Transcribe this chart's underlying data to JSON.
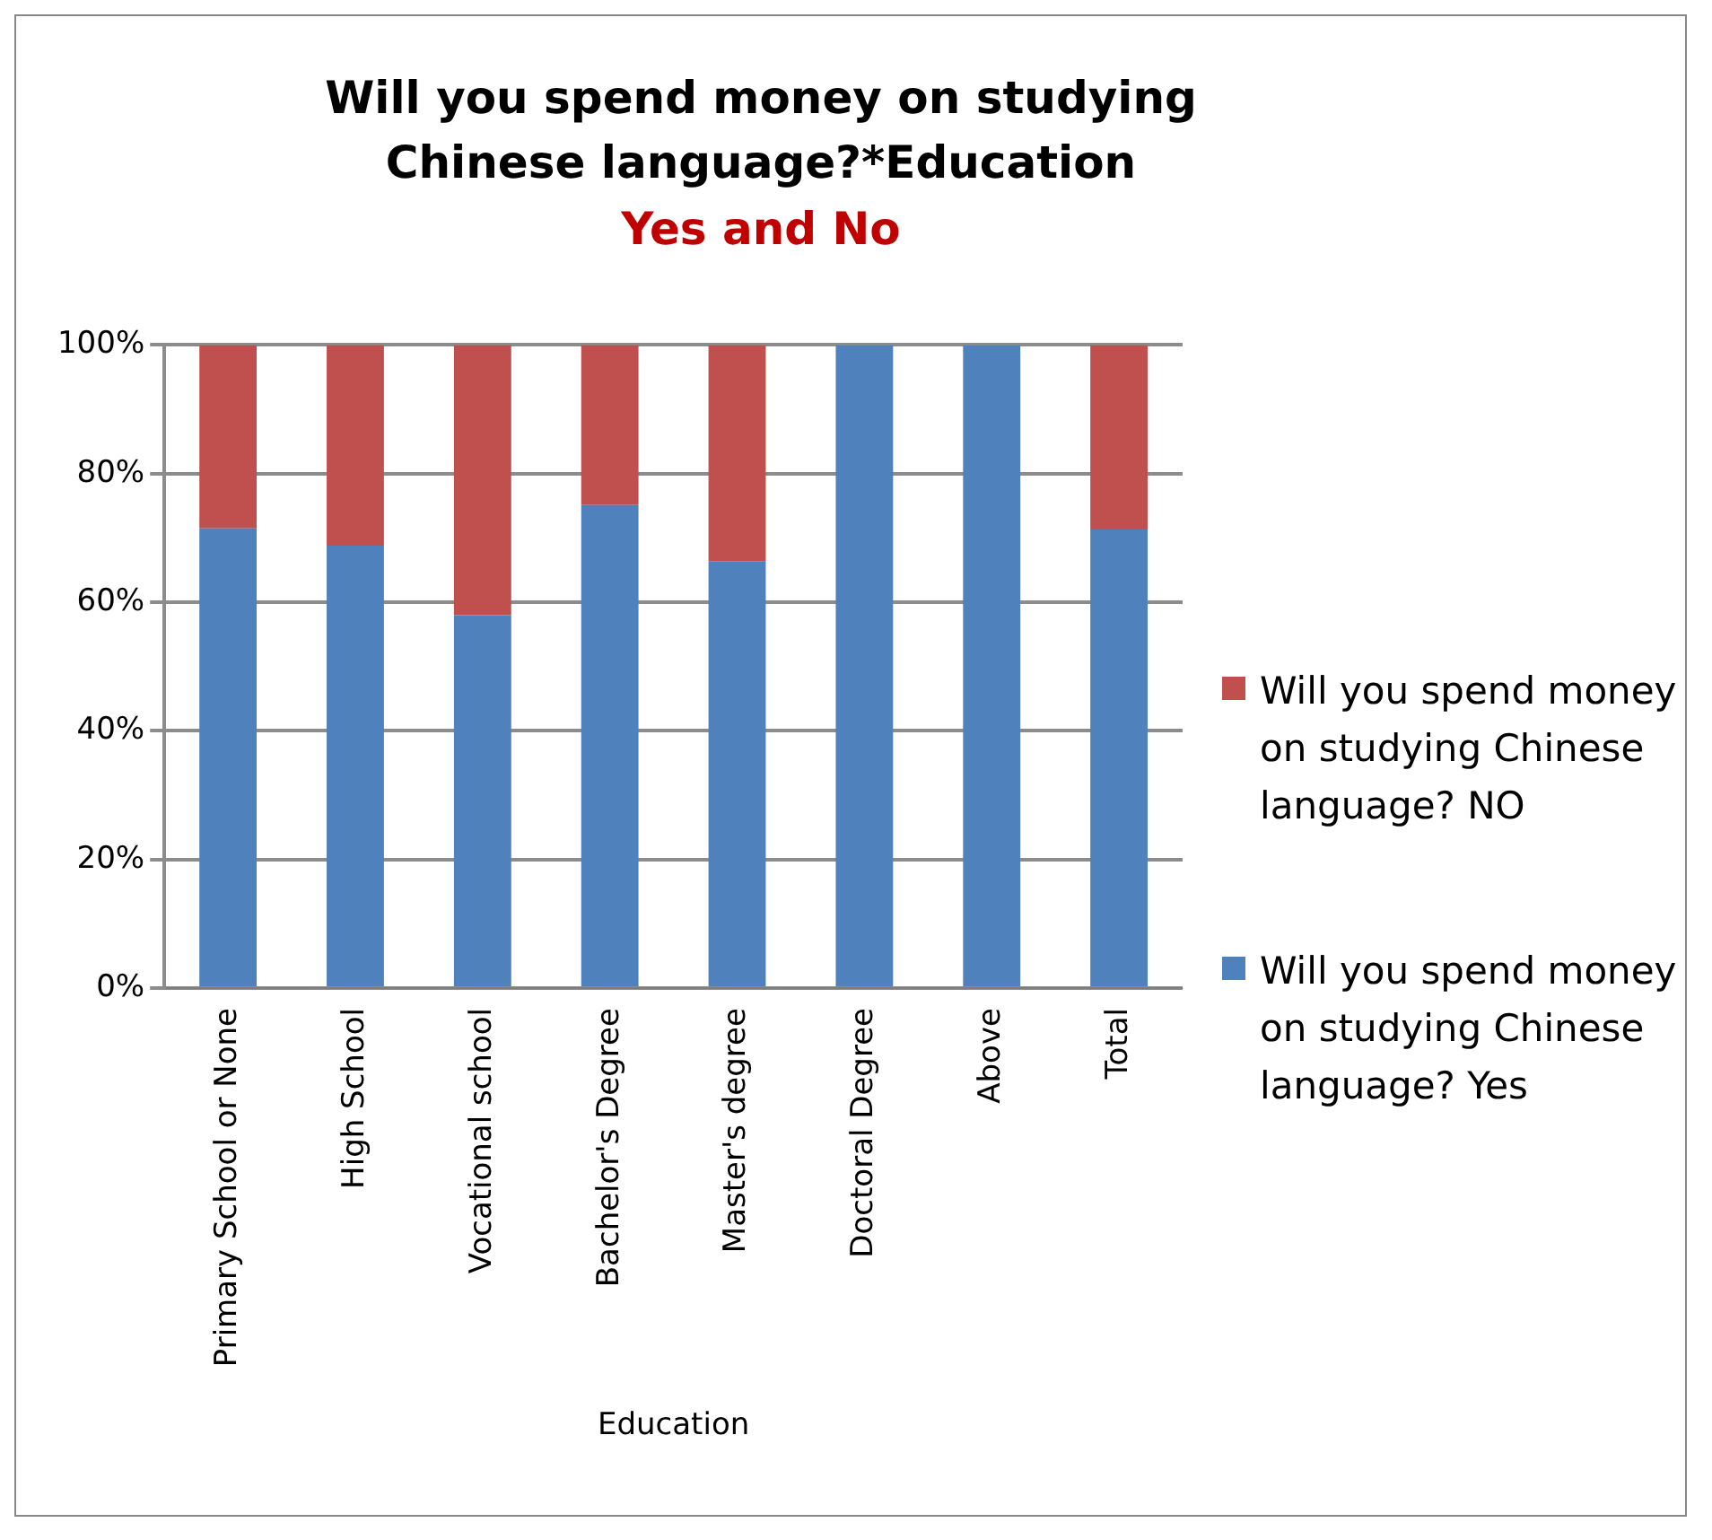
{
  "chart_data": {
    "type": "bar",
    "title": "Will you spend money on studying Chinese language?*Education",
    "subtitle": "Yes  and No",
    "xlabel": "Education",
    "categories": [
      "Primary School or None",
      "High School",
      "Vocational school",
      "Bachelor's Degree",
      "Master's degree",
      "Doctoral Degree",
      "Above",
      "Total"
    ],
    "series": [
      {
        "name": "Will you spend money on studying Chinese language? Yes",
        "color": "#4f81bd",
        "values": [
          71.5,
          68.8,
          58,
          75.1,
          66.4,
          100,
          100,
          71.3
        ]
      },
      {
        "name": "Will you spend money on studying Chinese language? NO",
        "color": "#c0504d",
        "values": [
          28.5,
          31.2,
          42,
          24.9,
          33.6,
          0,
          0,
          28.7
        ]
      }
    ],
    "stacked": true,
    "ylim": [
      0,
      100
    ],
    "yticks": [
      {
        "value": 0,
        "label": "0%"
      },
      {
        "value": 20,
        "label": "20%"
      },
      {
        "value": 40,
        "label": "40%"
      },
      {
        "value": 60,
        "label": "60%"
      },
      {
        "value": 80,
        "label": "80%"
      },
      {
        "value": 100,
        "label": "100%"
      }
    ],
    "grid": "y",
    "legend": "right"
  }
}
